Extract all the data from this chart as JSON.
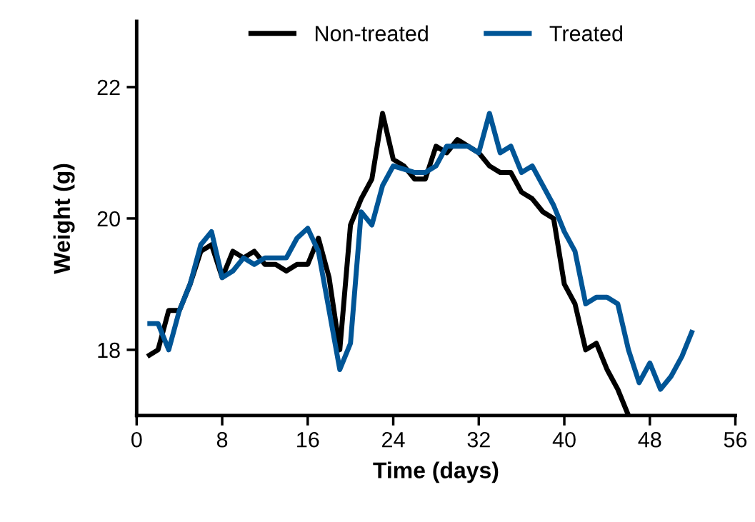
{
  "chart_data": {
    "type": "line",
    "xlabel": "Time (days)",
    "ylabel": "Weight (g)",
    "xlim": [
      0,
      56
    ],
    "xticks": [
      0,
      8,
      16,
      24,
      32,
      40,
      48,
      56
    ],
    "ylim": [
      17,
      23
    ],
    "yticks": [
      18,
      20,
      22
    ],
    "grid": false,
    "legend": "top",
    "marker": "none",
    "line_style": "solid",
    "series": [
      {
        "name": "Non-treated",
        "color": "#000000",
        "x": [
          1,
          2,
          3,
          4,
          5,
          6,
          7,
          8,
          9,
          10,
          11,
          12,
          13,
          14,
          15,
          16,
          17,
          18,
          19,
          20,
          21,
          22,
          23,
          24,
          25,
          26,
          27,
          28,
          29,
          30,
          31,
          32,
          33,
          34,
          35,
          36,
          37,
          38,
          39,
          40,
          41,
          42,
          43,
          44,
          45,
          46
        ],
        "values": [
          17.9,
          18.0,
          18.6,
          18.6,
          19.0,
          19.5,
          19.6,
          19.1,
          19.5,
          19.4,
          19.5,
          19.3,
          19.3,
          19.2,
          19.3,
          19.3,
          19.7,
          19.1,
          18.0,
          19.9,
          20.3,
          20.6,
          21.6,
          20.9,
          20.8,
          20.6,
          20.6,
          21.1,
          21.0,
          21.2,
          21.1,
          21.0,
          20.8,
          20.7,
          20.7,
          20.4,
          20.3,
          20.1,
          20.0,
          19.0,
          18.7,
          18.0,
          18.1,
          17.7,
          17.4,
          17.0
        ]
      },
      {
        "name": "Treated",
        "color": "#005596",
        "x": [
          1,
          2,
          3,
          4,
          5,
          6,
          7,
          8,
          9,
          10,
          11,
          12,
          13,
          14,
          15,
          16,
          17,
          18,
          19,
          20,
          21,
          22,
          23,
          24,
          25,
          26,
          27,
          28,
          29,
          30,
          31,
          32,
          33,
          34,
          35,
          36,
          37,
          38,
          39,
          40,
          41,
          42,
          43,
          44,
          45,
          46,
          47,
          48,
          49,
          50,
          51,
          52
        ],
        "values": [
          18.4,
          18.4,
          18.0,
          18.6,
          19.0,
          19.6,
          19.8,
          19.1,
          19.2,
          19.4,
          19.3,
          19.4,
          19.4,
          19.4,
          19.7,
          19.85,
          19.5,
          18.6,
          17.7,
          18.1,
          20.1,
          19.9,
          20.5,
          20.8,
          20.75,
          20.7,
          20.7,
          20.8,
          21.1,
          21.1,
          21.1,
          21.0,
          21.6,
          21.0,
          21.1,
          20.7,
          20.8,
          20.5,
          20.2,
          19.8,
          19.5,
          18.7,
          18.8,
          18.8,
          18.7,
          18.0,
          17.5,
          17.8,
          17.4,
          17.6,
          17.9,
          18.3
        ]
      }
    ]
  }
}
